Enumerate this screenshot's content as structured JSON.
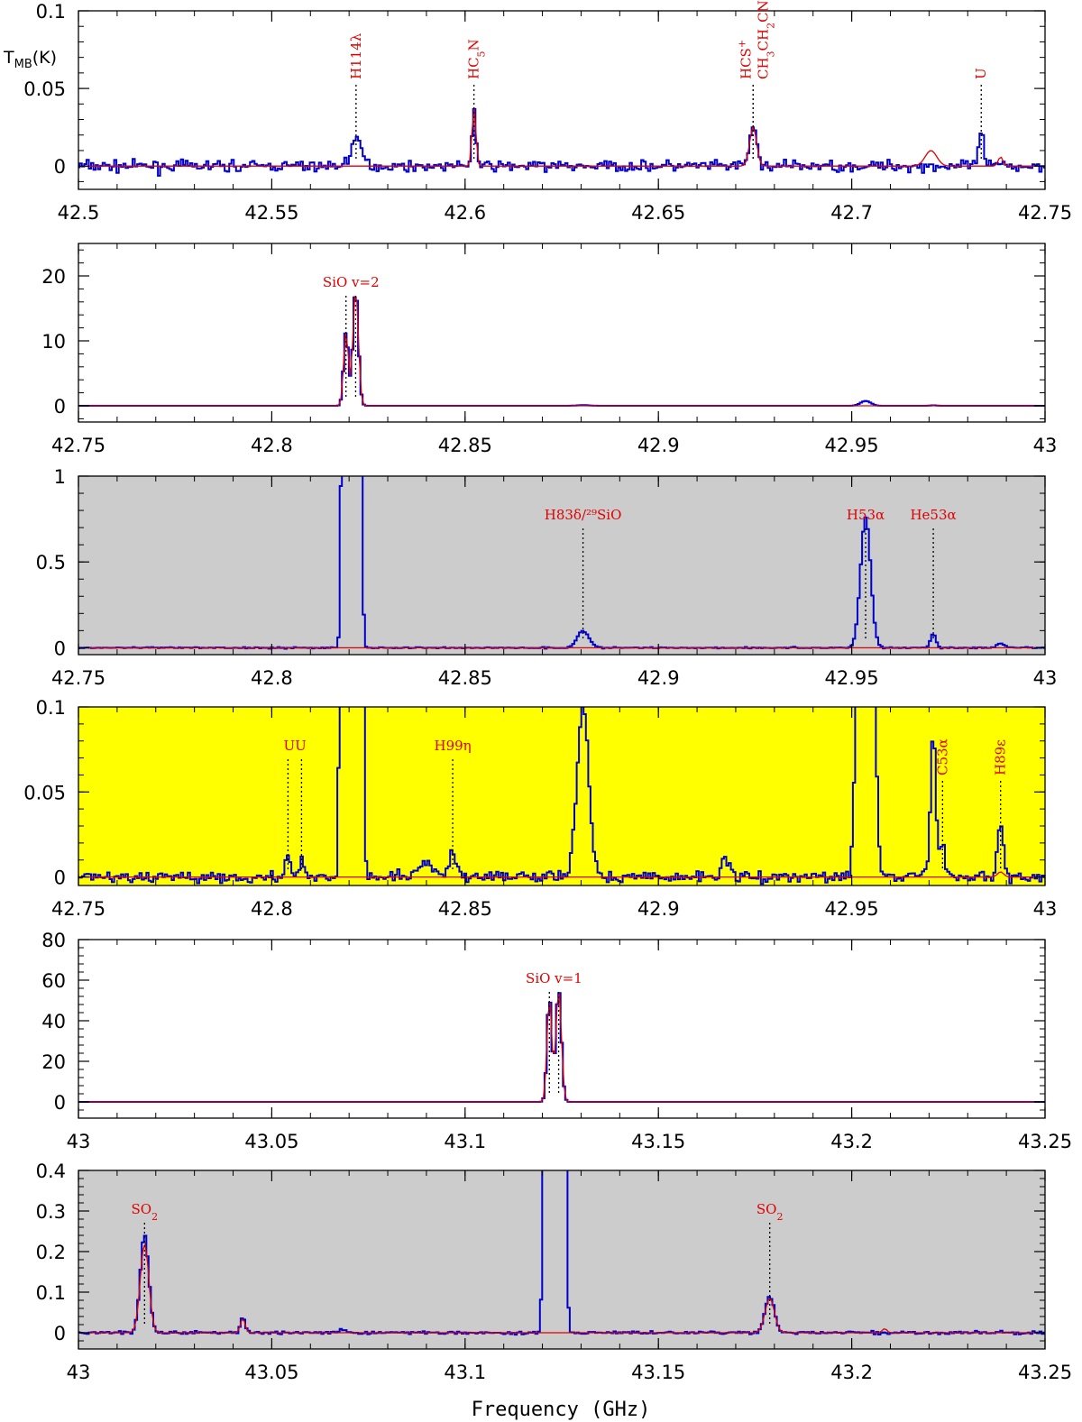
{
  "figure": {
    "xlabel": "Frequency (GHz)",
    "ylabel": "T_MB(K)",
    "colors": {
      "observed": "#0000cc",
      "model": "#e00000",
      "annotation": "#e00000",
      "gray_bg": "#cccccc",
      "yellow_bg": "#ffff00"
    }
  },
  "chart_data": [
    {
      "type": "line",
      "xlim": [
        42.5,
        42.75
      ],
      "ylim": [
        -0.015,
        0.1
      ],
      "xticks": [
        42.5,
        42.55,
        42.6,
        42.65,
        42.7,
        42.75
      ],
      "xtick_labels": [
        "42.5",
        "42.55",
        "42.6",
        "42.65",
        "42.7",
        "42.75"
      ],
      "yticks": [
        0,
        0.05,
        0.1
      ],
      "ytick_labels": [
        "0",
        "0.05",
        "0.1"
      ],
      "ylabel": "T_MB(K)",
      "background": "white",
      "noise": 0.0035,
      "lines": [
        {
          "x": 42.5718,
          "amp": 0.016,
          "width": 0.0015
        },
        {
          "x": 42.6023,
          "amp": 0.037,
          "width": 0.0005,
          "model": 0.038
        },
        {
          "x": 42.6745,
          "amp": 0.026,
          "width": 0.0009,
          "model": 0.025
        },
        {
          "x": 42.7205,
          "amp": 0.0,
          "width": 0.0015,
          "model": 0.01
        },
        {
          "x": 42.7335,
          "amp": 0.02,
          "width": 0.0007
        },
        {
          "x": 42.7385,
          "amp": 0.0,
          "width": 0.0006,
          "model": 0.006
        }
      ],
      "annotations": [
        {
          "label": "H114λ",
          "x": 42.5718,
          "rotated": true
        },
        {
          "label": "HC5N",
          "x": 42.6023,
          "rotated": true
        },
        {
          "label": "HCS+",
          "x": 42.6745,
          "rotated": true,
          "row": 1
        },
        {
          "label": "CH3CH2CN",
          "x": 42.6745,
          "rotated": true,
          "row": 2
        },
        {
          "label": "U",
          "x": 42.7335,
          "rotated": true
        }
      ]
    },
    {
      "type": "line",
      "xlim": [
        42.75,
        43.0
      ],
      "ylim": [
        -2.5,
        25
      ],
      "xticks": [
        42.75,
        42.8,
        42.85,
        42.9,
        42.95,
        43.0
      ],
      "xtick_labels": [
        "42.75",
        "42.8",
        "42.85",
        "42.9",
        "42.95",
        "43"
      ],
      "yticks": [
        0,
        10,
        20
      ],
      "ytick_labels": [
        "0",
        "10",
        "20"
      ],
      "background": "white",
      "noise": 0.0,
      "lines": [
        {
          "x": 42.8192,
          "amp": 11.5,
          "width": 0.0006,
          "model": 11.5
        },
        {
          "x": 42.8217,
          "amp": 18.0,
          "width": 0.0007,
          "model": 18.0
        },
        {
          "x": 42.8805,
          "amp": 0.1,
          "width": 0.0015
        },
        {
          "x": 42.9536,
          "amp": 0.75,
          "width": 0.0013
        },
        {
          "x": 42.9711,
          "amp": 0.08,
          "width": 0.0007
        }
      ],
      "annotations": [
        {
          "label": "SiO v=2",
          "x": 42.8205,
          "ticks": [
            42.8192,
            42.8217
          ]
        }
      ]
    },
    {
      "type": "line",
      "xlim": [
        42.75,
        43.0
      ],
      "ylim": [
        -0.04,
        1.0
      ],
      "xticks": [
        42.75,
        42.8,
        42.85,
        42.9,
        42.95,
        43.0
      ],
      "xtick_labels": [
        "42.75",
        "42.8",
        "42.85",
        "42.9",
        "42.95",
        "43"
      ],
      "yticks": [
        0,
        0.5,
        1
      ],
      "ytick_labels": [
        "0",
        "0.5",
        "1"
      ],
      "background": "gray",
      "noise": 0.004,
      "lines": [
        {
          "x": 42.8192,
          "amp": 11.5,
          "width": 0.0006
        },
        {
          "x": 42.8217,
          "amp": 18.0,
          "width": 0.0007
        },
        {
          "x": 42.8805,
          "amp": 0.1,
          "width": 0.0015
        },
        {
          "x": 42.9536,
          "amp": 0.76,
          "width": 0.0013
        },
        {
          "x": 42.9711,
          "amp": 0.08,
          "width": 0.0007
        },
        {
          "x": 42.9885,
          "amp": 0.025,
          "width": 0.0009
        }
      ],
      "annotations": [
        {
          "label": "H83δ/²⁹SiO",
          "x": 42.8805
        },
        {
          "label": "H53α",
          "x": 42.9536
        },
        {
          "label": "He53α",
          "x": 42.9711
        }
      ]
    },
    {
      "type": "line",
      "xlim": [
        42.75,
        43.0
      ],
      "ylim": [
        -0.005,
        0.1
      ],
      "xticks": [
        42.75,
        42.8,
        42.85,
        42.9,
        42.95,
        43.0
      ],
      "xtick_labels": [
        "42.75",
        "42.8",
        "42.85",
        "42.9",
        "42.95",
        "43"
      ],
      "yticks": [
        0,
        0.05,
        0.1
      ],
      "ytick_labels": [
        "0",
        "0.05",
        "0.1"
      ],
      "background": "yellow",
      "noise": 0.0035,
      "lines": [
        {
          "x": 42.8042,
          "amp": 0.012,
          "width": 0.0006
        },
        {
          "x": 42.8077,
          "amp": 0.013,
          "width": 0.0006
        },
        {
          "x": 42.8192,
          "amp": 11.5,
          "width": 0.0006
        },
        {
          "x": 42.8217,
          "amp": 18.0,
          "width": 0.0007
        },
        {
          "x": 42.8395,
          "amp": 0.01,
          "width": 0.0015
        },
        {
          "x": 42.8468,
          "amp": 0.015,
          "width": 0.001
        },
        {
          "x": 42.8805,
          "amp": 0.1,
          "width": 0.0015
        },
        {
          "x": 42.9536,
          "amp": 0.76,
          "width": 0.0013
        },
        {
          "x": 42.9711,
          "amp": 0.085,
          "width": 0.0007
        },
        {
          "x": 42.9735,
          "amp": 0.02,
          "width": 0.0006
        },
        {
          "x": 42.9885,
          "amp": 0.03,
          "width": 0.0008,
          "model": 0.003
        },
        {
          "x": 42.9175,
          "amp": 0.012,
          "width": 0.001
        }
      ],
      "annotations": [
        {
          "label": "UU",
          "x": 42.806,
          "ticks": [
            42.8042,
            42.8077
          ]
        },
        {
          "label": "H99η",
          "x": 42.8468
        },
        {
          "label": "C53α",
          "x": 42.9735,
          "rotated": true
        },
        {
          "label": "H89ε",
          "x": 42.9885,
          "rotated": true
        }
      ]
    },
    {
      "type": "line",
      "xlim": [
        43.0,
        43.25
      ],
      "ylim": [
        -8,
        80
      ],
      "xticks": [
        43.0,
        43.05,
        43.1,
        43.15,
        43.2,
        43.25
      ],
      "xtick_labels": [
        "43",
        "43.05",
        "43.1",
        "43.15",
        "43.2",
        "43.25"
      ],
      "yticks": [
        0,
        20,
        40,
        60,
        80
      ],
      "ytick_labels": [
        "0",
        "20",
        "40",
        "60",
        "80"
      ],
      "background": "white",
      "noise": 0.0,
      "lines": [
        {
          "x": 43.1218,
          "amp": 52.0,
          "width": 0.0006,
          "model": 52.0
        },
        {
          "x": 43.1242,
          "amp": 56.0,
          "width": 0.0007,
          "model": 56.0
        }
      ],
      "annotations": [
        {
          "label": "SiO v=1",
          "x": 43.123,
          "ticks": [
            43.1218,
            43.1242
          ]
        }
      ]
    },
    {
      "type": "line",
      "xlim": [
        43.0,
        43.25
      ],
      "ylim": [
        -0.04,
        0.4
      ],
      "xticks": [
        43.0,
        43.05,
        43.1,
        43.15,
        43.2,
        43.25
      ],
      "xtick_labels": [
        "43",
        "43.05",
        "43.1",
        "43.15",
        "43.2",
        "43.25"
      ],
      "yticks": [
        0,
        0.1,
        0.2,
        0.3,
        0.4
      ],
      "ytick_labels": [
        "0",
        "0.1",
        "0.2",
        "0.3",
        "0.4"
      ],
      "background": "gray",
      "noise": 0.0035,
      "lines": [
        {
          "x": 43.0171,
          "amp": 0.24,
          "width": 0.0011,
          "model": 0.22
        },
        {
          "x": 43.0425,
          "amp": 0.04,
          "width": 0.0006,
          "model": 0.035
        },
        {
          "x": 43.0685,
          "amp": 0.008,
          "width": 0.001
        },
        {
          "x": 43.1218,
          "amp": 52.0,
          "width": 0.0006
        },
        {
          "x": 43.1242,
          "amp": 56.0,
          "width": 0.0007
        },
        {
          "x": 43.1788,
          "amp": 0.09,
          "width": 0.0012,
          "model": 0.085
        },
        {
          "x": 43.2085,
          "amp": 0.0,
          "width": 0.0006,
          "model": 0.01
        }
      ],
      "annotations": [
        {
          "label": "SO2",
          "x": 43.0171
        },
        {
          "label": "SO2",
          "x": 43.1788
        }
      ]
    }
  ]
}
